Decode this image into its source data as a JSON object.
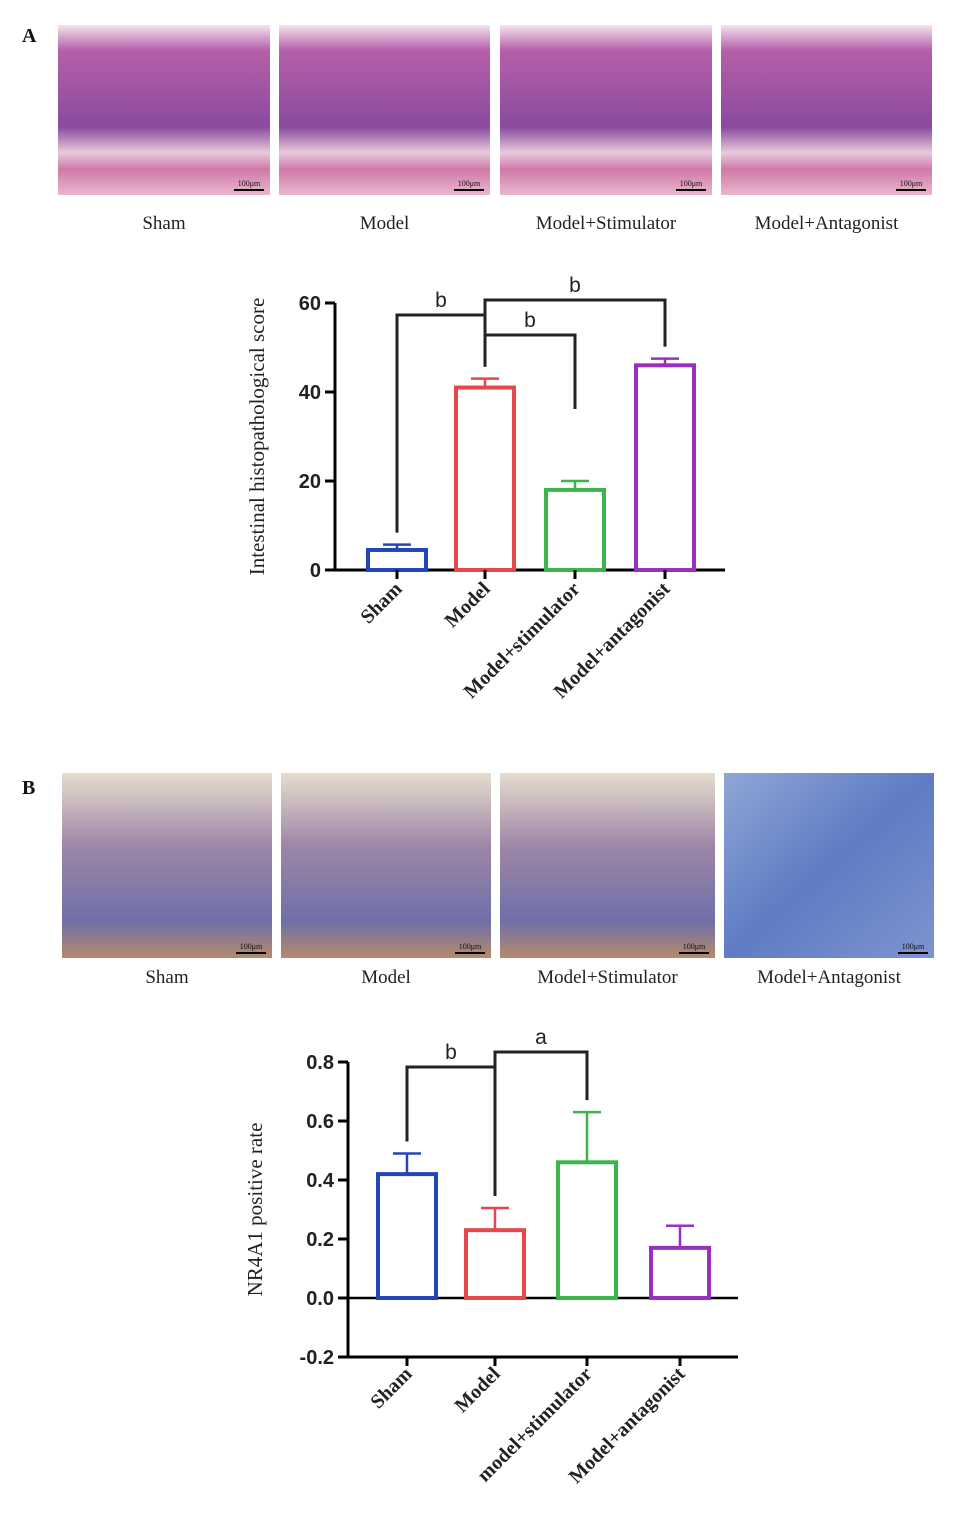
{
  "panel_a": {
    "label": "A",
    "images": [
      {
        "caption": "Sham",
        "scale_bar": "100μm"
      },
      {
        "caption": "Model",
        "scale_bar": "100μm"
      },
      {
        "caption": "Model+Stimulator",
        "scale_bar": "100μm"
      },
      {
        "caption": "Model+Antagonist",
        "scale_bar": "100μm"
      }
    ]
  },
  "panel_b": {
    "label": "B",
    "images": [
      {
        "caption": "Sham",
        "scale_bar": "100μm"
      },
      {
        "caption": "Model",
        "scale_bar": "100μm"
      },
      {
        "caption": "Model+Stimulator",
        "scale_bar": "100μm"
      },
      {
        "caption": "Model+Antagonist",
        "scale_bar": "100μm"
      }
    ]
  },
  "chart_data": [
    {
      "type": "bar",
      "y_label": "Intestinal histopathological score",
      "categories": [
        "Sham",
        "Model",
        "Model+stimulator",
        "Model+antagonist"
      ],
      "values": [
        4.5,
        41,
        18,
        46
      ],
      "errors": [
        1.2,
        2,
        2,
        1.5
      ],
      "colors": [
        "#2445b8",
        "#e5474b",
        "#3cb44b",
        "#9a2fbf"
      ],
      "ylim": [
        0,
        60
      ],
      "yticks": [
        0,
        20,
        40,
        60
      ],
      "significance": [
        {
          "between": [
            "Sham",
            "Model"
          ],
          "label": "b"
        },
        {
          "between": [
            "Model",
            "Model+stimulator"
          ],
          "label": "b"
        },
        {
          "between": [
            "Model",
            "Model+antagonist"
          ],
          "label": "b"
        }
      ]
    },
    {
      "type": "bar",
      "y_label": "NR4A1 positive rate",
      "categories": [
        "Sham",
        "Model",
        "model+stimulator",
        "Model+antagonist"
      ],
      "values": [
        0.42,
        0.23,
        0.46,
        0.17
      ],
      "errors": [
        0.07,
        0.075,
        0.17,
        0.075
      ],
      "colors": [
        "#2445b8",
        "#e5474b",
        "#3cb44b",
        "#9a2fbf"
      ],
      "ylim": [
        -0.2,
        0.8
      ],
      "yticks": [
        -0.2,
        {
          "value": 0,
          "label": "0.0"
        },
        0.2,
        0.4,
        0.6,
        0.8
      ],
      "significance": [
        {
          "between": [
            "Sham",
            "Model"
          ],
          "label": "b"
        },
        {
          "between": [
            "Model",
            "model+stimulator"
          ],
          "label": "a"
        }
      ]
    }
  ]
}
